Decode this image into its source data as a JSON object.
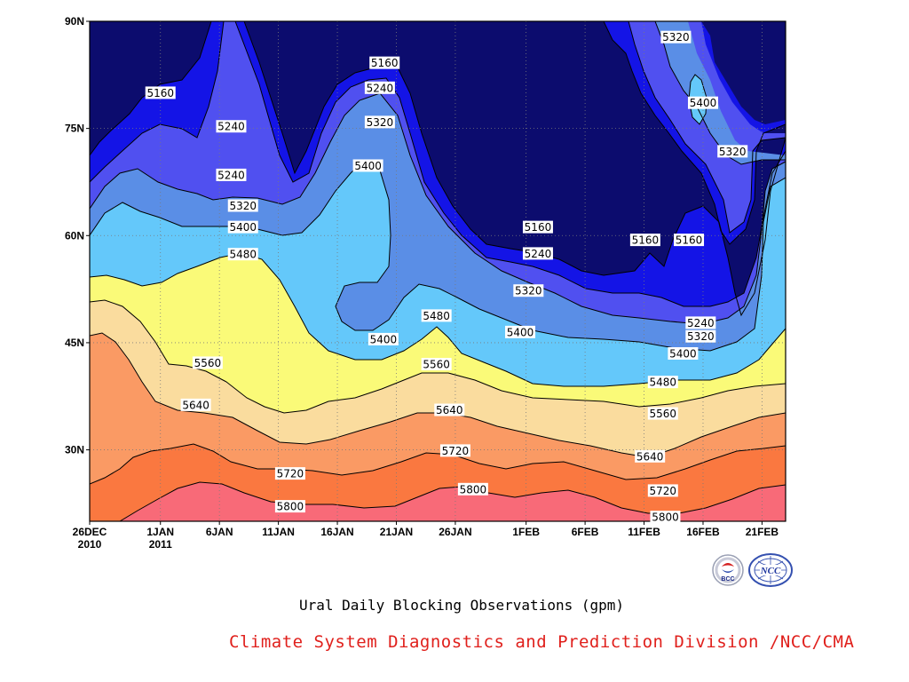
{
  "title": "Ural Daily Blocking Observations (gpm)",
  "credit": "Climate System Diagnostics and Prediction Division /NCC/CMA",
  "logos": {
    "left": "BCC",
    "right": "NCC"
  },
  "colors": {
    "c_lt5160": "#0c0c6e",
    "c_5160": "#1414e6",
    "c_5240": "#5050f0",
    "c_5320": "#5a8ee6",
    "c_5400": "#64c8fa",
    "c_5480": "#fafa78",
    "c_5560": "#fadc9e",
    "c_5640": "#fa9a64",
    "c_5720": "#fa7840",
    "c_5800": "#f86a78",
    "credit": "#e0201c"
  },
  "chart_data": {
    "type": "contour",
    "title": "Ural Daily Blocking Observations (gpm)",
    "x_ticks": [
      {
        "label": "26DEC",
        "sub": "2010",
        "day": 0
      },
      {
        "label": "1JAN",
        "sub": "2011",
        "day": 6
      },
      {
        "label": "6JAN",
        "sub": "",
        "day": 11
      },
      {
        "label": "11JAN",
        "sub": "",
        "day": 16
      },
      {
        "label": "16JAN",
        "sub": "",
        "day": 21
      },
      {
        "label": "21JAN",
        "sub": "",
        "day": 26
      },
      {
        "label": "26JAN",
        "sub": "",
        "day": 31
      },
      {
        "label": "1FEB",
        "sub": "",
        "day": 37
      },
      {
        "label": "6FEB",
        "sub": "",
        "day": 42
      },
      {
        "label": "11FEB",
        "sub": "",
        "day": 47
      },
      {
        "label": "16FEB",
        "sub": "",
        "day": 52
      },
      {
        "label": "21FEB",
        "sub": "",
        "day": 57
      }
    ],
    "x_range_days": [
      0,
      59
    ],
    "y_ticks": [
      {
        "label": "90N",
        "lat": 90
      },
      {
        "label": "75N",
        "lat": 75
      },
      {
        "label": "60N",
        "lat": 60
      },
      {
        "label": "45N",
        "lat": 45
      },
      {
        "label": "30N",
        "lat": 30
      }
    ],
    "y_range_lat": [
      20,
      90
    ],
    "grid": "dotted",
    "levels": [
      5160,
      5240,
      5320,
      5400,
      5480,
      5560,
      5640,
      5720,
      5800
    ],
    "contour_labels": [
      {
        "text": "5160",
        "day": 6.0,
        "lat": 80.0
      },
      {
        "text": "5240",
        "day": 12.0,
        "lat": 75.3
      },
      {
        "text": "5240",
        "day": 12.0,
        "lat": 68.5
      },
      {
        "text": "5320",
        "day": 13.0,
        "lat": 64.2
      },
      {
        "text": "5400",
        "day": 13.0,
        "lat": 61.2
      },
      {
        "text": "5480",
        "day": 13.0,
        "lat": 57.4
      },
      {
        "text": "5560",
        "day": 10.0,
        "lat": 42.2
      },
      {
        "text": "5640",
        "day": 9.0,
        "lat": 36.3
      },
      {
        "text": "5720",
        "day": 17.0,
        "lat": 26.7
      },
      {
        "text": "5800",
        "day": 17.0,
        "lat": 22.1
      },
      {
        "text": "5160",
        "day": 25.0,
        "lat": 84.2
      },
      {
        "text": "5240",
        "day": 24.6,
        "lat": 80.7
      },
      {
        "text": "5320",
        "day": 24.6,
        "lat": 75.9
      },
      {
        "text": "5400",
        "day": 23.6,
        "lat": 69.8
      },
      {
        "text": "5400",
        "day": 24.9,
        "lat": 45.5
      },
      {
        "text": "5480",
        "day": 29.4,
        "lat": 48.8
      },
      {
        "text": "5560",
        "day": 29.4,
        "lat": 42.0
      },
      {
        "text": "5640",
        "day": 30.5,
        "lat": 35.6
      },
      {
        "text": "5720",
        "day": 31.0,
        "lat": 29.9
      },
      {
        "text": "5800",
        "day": 32.5,
        "lat": 24.5
      },
      {
        "text": "5160",
        "day": 38.0,
        "lat": 61.2
      },
      {
        "text": "5240",
        "day": 38.0,
        "lat": 57.5
      },
      {
        "text": "5320",
        "day": 37.2,
        "lat": 52.3
      },
      {
        "text": "5400",
        "day": 36.5,
        "lat": 46.5
      },
      {
        "text": "5160",
        "day": 47.1,
        "lat": 59.4
      },
      {
        "text": "5160",
        "day": 50.8,
        "lat": 59.4
      },
      {
        "text": "5320",
        "day": 49.7,
        "lat": 87.8
      },
      {
        "text": "5400",
        "day": 52.0,
        "lat": 78.6
      },
      {
        "text": "5320",
        "day": 54.5,
        "lat": 71.8
      },
      {
        "text": "5240",
        "day": 51.8,
        "lat": 47.8
      },
      {
        "text": "5320",
        "day": 51.8,
        "lat": 45.9
      },
      {
        "text": "5400",
        "day": 50.3,
        "lat": 43.5
      },
      {
        "text": "5480",
        "day": 48.6,
        "lat": 39.5
      },
      {
        "text": "5560",
        "day": 48.6,
        "lat": 35.1
      },
      {
        "text": "5640",
        "day": 47.5,
        "lat": 29.1
      },
      {
        "text": "5720",
        "day": 48.6,
        "lat": 24.3
      },
      {
        "text": "5800",
        "day": 48.8,
        "lat": 20.6
      }
    ]
  }
}
